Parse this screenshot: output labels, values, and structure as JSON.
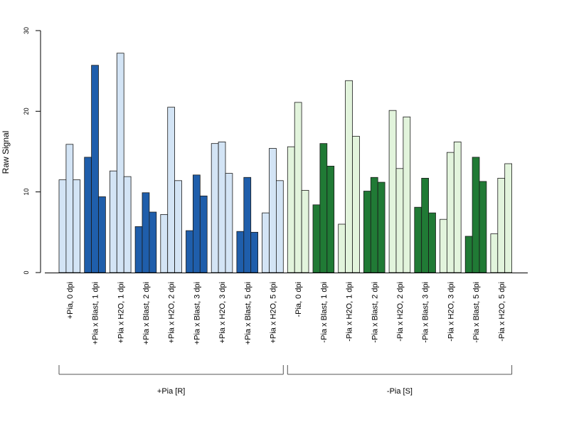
{
  "chart_data": {
    "type": "bar",
    "title": "",
    "xlabel": "",
    "ylabel": "Raw Signal",
    "ylim": [
      0,
      30
    ],
    "yticks": [
      0,
      10,
      20,
      30
    ],
    "grid": false,
    "legend": "none",
    "bars_per_group": 3,
    "categories": [
      "+Pia, 0 dpi",
      "+Pia x Blast, 1 dpi",
      "+Pia x H2O, 1 dpi",
      "+Pia x Blast, 2 dpi",
      "+Pia x H2O, 2 dpi",
      "+Pia x Blast, 3 dpi",
      "+Pia x H2O, 3 dpi",
      "+Pia x Blast, 5 dpi",
      "+Pia x H2O, 5 dpi",
      "-Pia, 0 dpi",
      "-Pia x Blast, 1 dpi",
      "-Pia x H2O, 1 dpi",
      "-Pia x Blast, 2 dpi",
      "-Pia x H2O, 2 dpi",
      "-Pia x Blast, 3 dpi",
      "-Pia x H2O, 3 dpi",
      "-Pia x Blast, 5 dpi",
      "-Pia x H2O, 5 dpi"
    ],
    "values": [
      [
        11.5,
        15.9,
        11.5
      ],
      [
        14.3,
        25.7,
        9.4
      ],
      [
        12.6,
        27.2,
        11.9
      ],
      [
        5.7,
        9.9,
        7.5
      ],
      [
        7.2,
        20.5,
        11.4
      ],
      [
        5.2,
        12.1,
        9.5
      ],
      [
        16.0,
        16.2,
        12.3
      ],
      [
        5.1,
        11.8,
        5.0
      ],
      [
        7.4,
        15.4,
        11.4
      ],
      [
        15.6,
        21.1,
        10.2
      ],
      [
        8.4,
        16.0,
        13.2
      ],
      [
        6.0,
        23.8,
        16.9
      ],
      [
        10.1,
        11.8,
        11.2
      ],
      [
        20.1,
        12.9,
        19.3
      ],
      [
        8.1,
        11.7,
        7.4
      ],
      [
        6.6,
        14.9,
        16.2
      ],
      [
        4.5,
        14.3,
        11.3
      ],
      [
        4.8,
        11.7,
        13.5
      ]
    ],
    "bar_colors": [
      "#d3e4f5",
      "#1f5eab",
      "#d3e4f5",
      "#1f5eab",
      "#d3e4f5",
      "#1f5eab",
      "#d3e4f5",
      "#1f5eab",
      "#d3e4f5",
      "#e2f4dc",
      "#207a35",
      "#e2f4dc",
      "#207a35",
      "#e2f4dc",
      "#207a35",
      "#e2f4dc",
      "#207a35",
      "#e2f4dc"
    ],
    "brackets": [
      {
        "label": "+Pia [R]",
        "from": 0,
        "to": 8
      },
      {
        "label": "-Pia [S]",
        "from": 9,
        "to": 17
      }
    ]
  }
}
